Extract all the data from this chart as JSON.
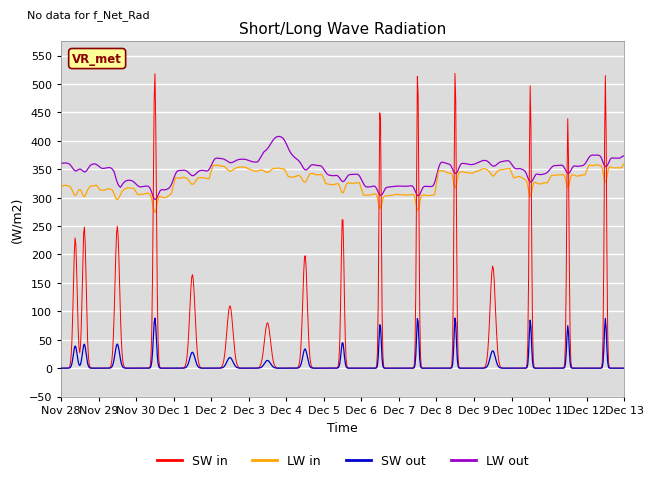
{
  "title": "Short/Long Wave Radiation",
  "ylabel": "(W/m2)",
  "xlabel": "Time",
  "ylim": [
    -50,
    575
  ],
  "yticks": [
    -50,
    0,
    50,
    100,
    150,
    200,
    250,
    300,
    350,
    400,
    450,
    500,
    550
  ],
  "bg_color": "#dcdcdc",
  "note_text": "No data for f_Net_Rad",
  "legend_labels": [
    "SW in",
    "LW in",
    "SW out",
    "LW out"
  ],
  "legend_colors": [
    "#ff0000",
    "#ffa500",
    "#0000cc",
    "#9900cc"
  ],
  "station_label": "VR_met",
  "x_tick_labels": [
    "Nov 28",
    "Nov 29",
    "Nov 30",
    "Dec 1",
    "Dec 2",
    "Dec 3",
    "Dec 4",
    "Dec 5",
    "Dec 6",
    "Dec 7",
    "Dec 8",
    "Dec 9",
    "Dec 10",
    "Dec 11",
    "Dec 12",
    "Dec 13"
  ],
  "n_days": 15,
  "figsize": [
    6.4,
    4.8
  ],
  "dpi": 100
}
